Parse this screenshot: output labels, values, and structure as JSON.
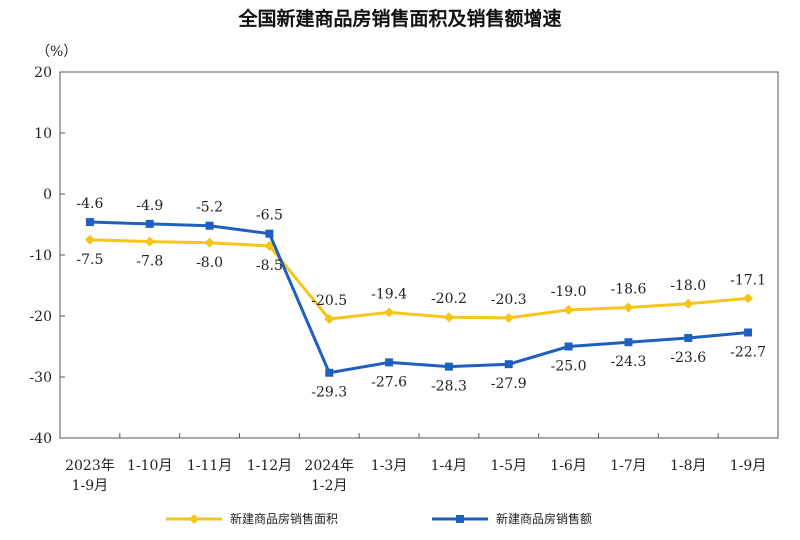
{
  "chart_data": {
    "type": "line",
    "title": "全国新建商品房销售面积及销售额增速",
    "ylabel": "（%）",
    "xlabel": "",
    "ylim": [
      -40,
      20
    ],
    "yticks": [
      20,
      10,
      0,
      -10,
      -20,
      -30,
      -40
    ],
    "categories": [
      [
        "2023年",
        "1-9月"
      ],
      [
        "1-10月"
      ],
      [
        "1-11月"
      ],
      [
        "1-12月"
      ],
      [
        "2024年",
        "1-2月"
      ],
      [
        "1-3月"
      ],
      [
        "1-4月"
      ],
      [
        "1-5月"
      ],
      [
        "1-6月"
      ],
      [
        "1-7月"
      ],
      [
        "1-8月"
      ],
      [
        "1-9月"
      ]
    ],
    "series": [
      {
        "name": "新建商品房销售面积",
        "color": "#f5c518",
        "values": [
          -7.5,
          -7.8,
          -8.0,
          -8.5,
          -20.5,
          -19.4,
          -20.2,
          -20.3,
          -19.0,
          -18.6,
          -18.0,
          -17.1
        ],
        "labels": [
          "-7.5",
          "-7.8",
          "-8.0",
          "-8.5",
          "-20.5",
          "-19.4",
          "-20.2",
          "-20.3",
          "-19.0",
          "-18.6",
          "-18.0",
          "-17.1"
        ]
      },
      {
        "name": "新建商品房销售额",
        "color": "#1f5fbf",
        "values": [
          -4.6,
          -4.9,
          -5.2,
          -6.5,
          -29.3,
          -27.6,
          -28.3,
          -27.9,
          -25.0,
          -24.3,
          -23.6,
          -22.7
        ],
        "labels": [
          "-4.6",
          "-4.9",
          "-5.2",
          "-6.5",
          "-29.3",
          "-27.6",
          "-28.3",
          "-27.9",
          "-25.0",
          "-24.3",
          "-23.6",
          "-22.7"
        ]
      }
    ],
    "grid": false,
    "legend": "bottom"
  }
}
